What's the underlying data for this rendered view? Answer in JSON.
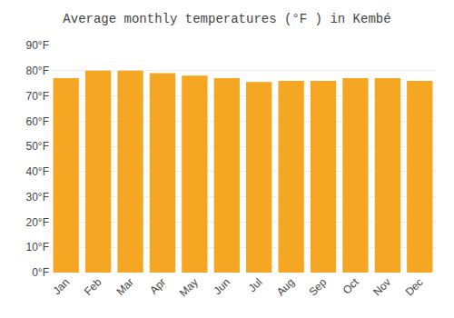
{
  "chart_data": {
    "type": "bar",
    "title": "Average monthly temperatures (°F ) in Kembé",
    "categories": [
      "Jan",
      "Feb",
      "Mar",
      "Apr",
      "May",
      "Jun",
      "Jul",
      "Aug",
      "Sep",
      "Oct",
      "Nov",
      "Dec"
    ],
    "values": [
      77.0,
      80.0,
      80.0,
      79.0,
      78.0,
      77.0,
      75.5,
      76.0,
      76.0,
      77.0,
      77.0,
      76.0
    ],
    "color": "#F5A623",
    "ylim": [
      0,
      90
    ],
    "yticks": [
      {
        "value": 0,
        "label": "0°F"
      },
      {
        "value": 10,
        "label": "10°F"
      },
      {
        "value": 20,
        "label": "20°F"
      },
      {
        "value": 30,
        "label": "30°F"
      },
      {
        "value": 40,
        "label": "40°F"
      },
      {
        "value": 50,
        "label": "50°F"
      },
      {
        "value": 60,
        "label": "60°F"
      },
      {
        "value": 70,
        "label": "70°F"
      },
      {
        "value": 80,
        "label": "80°F"
      },
      {
        "value": 90,
        "label": "90°F"
      }
    ],
    "grid": true
  }
}
